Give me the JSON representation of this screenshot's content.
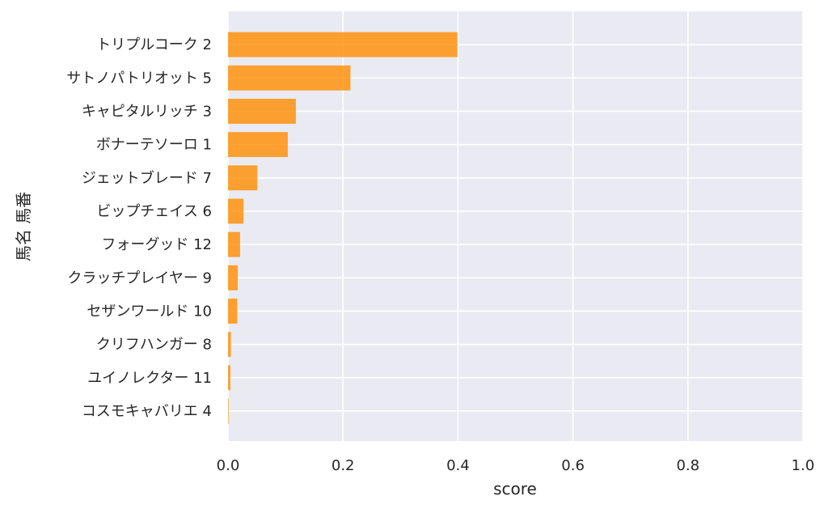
{
  "chart_data": {
    "type": "bar",
    "orientation": "horizontal",
    "categories": [
      "トリプルコーク 2",
      "サトノパトリオット 5",
      "キャピタルリッチ 3",
      "ボナーテソーロ 1",
      "ジェットブレード 7",
      "ビップチェイス 6",
      "フォーグッド 12",
      "クラッチプレイヤー 9",
      "セザンワールド 10",
      "クリフハンガー 8",
      "ユイノレクター 11",
      "コスモキャバリエ 4"
    ],
    "values": [
      0.399,
      0.213,
      0.118,
      0.104,
      0.051,
      0.027,
      0.021,
      0.017,
      0.016,
      0.005,
      0.004,
      0.001
    ],
    "xlabel": "score",
    "ylabel": "馬名 馬番",
    "xlim": [
      0,
      1.0
    ],
    "xticks": [
      "0.0",
      "0.2",
      "0.4",
      "0.6",
      "0.8",
      "1.0"
    ],
    "grid": true,
    "bar_color": "#ff8c00",
    "background_color": "#eaeaf2"
  }
}
